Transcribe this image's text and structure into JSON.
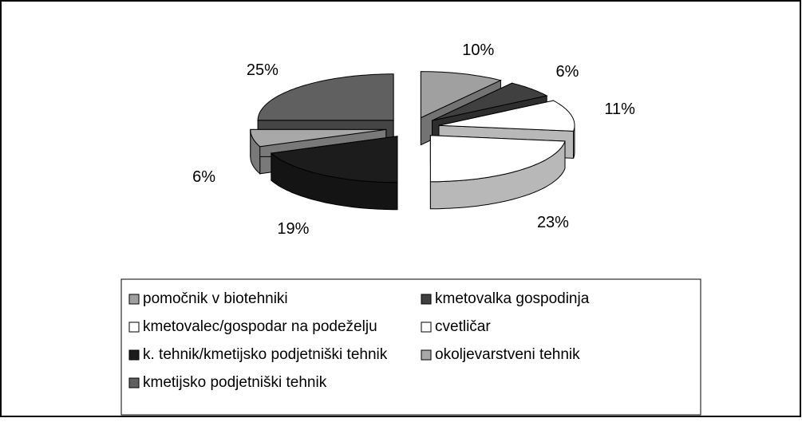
{
  "chart_data": {
    "type": "pie",
    "categories": [
      "pomočnik v biotehniki",
      "kmetovalka gospodinja",
      "kmetovalec/gospodar na podeželju",
      "cvetličar",
      "k. tehnik/kmetijsko podjetniški tehnik",
      "okoljevarstveni tehnik",
      "kmetijsko podjetniški tehnik"
    ],
    "values": [
      10,
      6,
      11,
      23,
      19,
      6,
      25
    ],
    "value_labels": [
      "10%",
      "6%",
      "11%",
      "23%",
      "19%",
      "6%",
      "25%"
    ],
    "colors": [
      "#a0a0a0",
      "#404040",
      "#ffffff",
      "#ffffff",
      "#1c1c1c",
      "#a8a8a8",
      "#606060"
    ],
    "legend": "bottom"
  }
}
